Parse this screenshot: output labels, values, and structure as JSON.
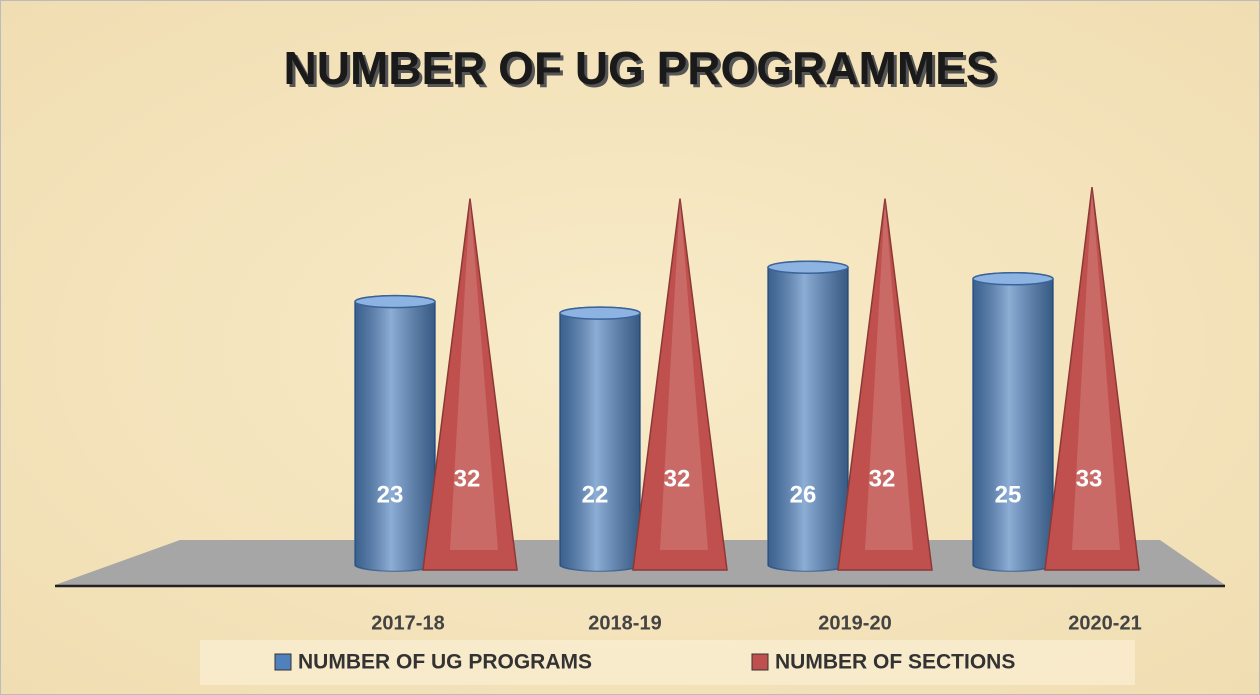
{
  "chart_data": {
    "type": "bar",
    "title": "NUMBER OF UG PROGRAMMES",
    "categories": [
      "2017-18",
      "2018-19",
      "2019-20",
      "2020-21"
    ],
    "series": [
      {
        "name": "NUMBER OF UG PROGRAMS",
        "color": "#4f81bd",
        "values": [
          23,
          22,
          26,
          25
        ]
      },
      {
        "name": "NUMBER OF SECTIONS",
        "color": "#c0504d",
        "values": [
          32,
          32,
          32,
          33
        ]
      }
    ],
    "legend": "bottom"
  }
}
